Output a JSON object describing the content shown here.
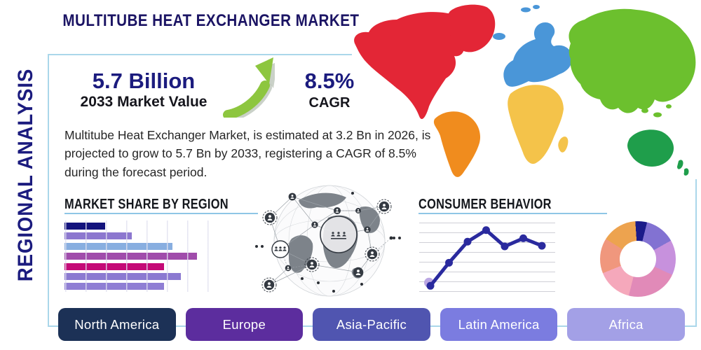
{
  "header": {
    "title": "MULTITUBE HEAT EXCHANGER MARKET"
  },
  "side_label": "REGIONAL ANALYSIS",
  "stats": {
    "market_value": "5.7 Billion",
    "market_value_caption": "2033 Market Value",
    "cagr_value": "8.5%",
    "cagr_caption": "CAGR",
    "growth_arrow_icon": "trend-up-arrow",
    "growth_arrow_color": "#8dc63f"
  },
  "description": "Multitube Heat Exchanger Market, is estimated at 3.2 Bn in 2026, is projected to grow to 5.7 Bn by 2033, registering a CAGR of 8.5% during the forecast period.",
  "chart_data": [
    {
      "type": "bar",
      "title": "MARKET SHARE BY REGION",
      "orientation": "horizontal",
      "values": [
        20,
        33,
        53,
        65,
        49,
        57,
        49
      ],
      "xlim": [
        0,
        74
      ],
      "categories_visible": false,
      "grid": "vertical",
      "colors": [
        "#13137d",
        "#8c77cf",
        "#88aee0",
        "#a04cab",
        "#c40a77",
        "#8b79d1",
        "#8f7ed4"
      ]
    },
    {
      "type": "line",
      "title": "CONSUMER BEHAVIOR",
      "x": [
        1,
        2,
        3,
        4,
        5,
        6,
        7
      ],
      "values": [
        10,
        44,
        75,
        92,
        68,
        80,
        69
      ],
      "ylim": [
        0,
        100
      ],
      "grid": "horizontal",
      "axis_labels_visible": false,
      "color": "#2a2a9e",
      "first_point_halo_color": "#b49de0"
    },
    {
      "type": "pie",
      "donut": true,
      "values": [
        5,
        13,
        15,
        22,
        15,
        15,
        15
      ],
      "labels_visible": false,
      "colors": [
        "#1b1b8a",
        "#8272d2",
        "#c791dd",
        "#e18ab8",
        "#f5a8bb",
        "#f0977d",
        "#eda34f"
      ],
      "start_angle_deg": -4
    }
  ],
  "map": {
    "name": "world-map-by-region",
    "regions": [
      {
        "name": "north-america",
        "color": "#e32636"
      },
      {
        "name": "south-america",
        "color": "#f08c1e"
      },
      {
        "name": "europe",
        "color": "#4a96d8"
      },
      {
        "name": "africa",
        "color": "#f4c34a"
      },
      {
        "name": "asia",
        "color": "#6cc02e"
      },
      {
        "name": "oceania",
        "color": "#1f9e4b"
      }
    ]
  },
  "globe_graphic": {
    "name": "connected-world-network",
    "icon": "people-network-globe"
  },
  "region_buttons": [
    {
      "label": "North America",
      "color": "#1c3156"
    },
    {
      "label": "Europe",
      "color": "#5c2d9e"
    },
    {
      "label": "Asia-Pacific",
      "color": "#5055b0"
    },
    {
      "label": "Latin America",
      "color": "#7b7ce0"
    },
    {
      "label": "Africa",
      "color": "#a3a0e6"
    }
  ],
  "panel_border_color": "#aad7ea"
}
